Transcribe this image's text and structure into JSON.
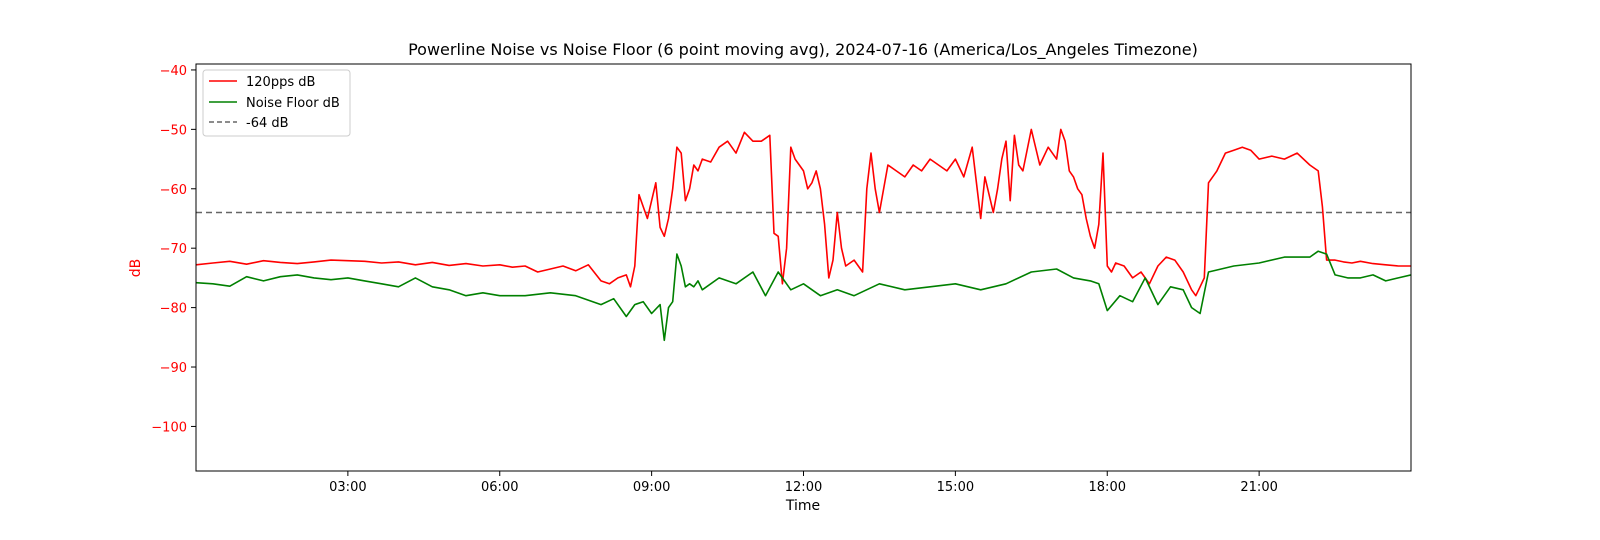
{
  "chart_data": {
    "type": "line",
    "title": "Powerline Noise vs Noise Floor (6 point moving avg), 2024-07-16 (America/Los_Angeles Timezone)",
    "xlabel": "Time",
    "ylabel": "dB",
    "xlim": [
      "00:00",
      "24:00"
    ],
    "ylim": [
      -107.5,
      -39
    ],
    "x_ticks": [
      "03:00",
      "06:00",
      "09:00",
      "12:00",
      "15:00",
      "18:00",
      "21:00"
    ],
    "y_ticks": [
      -40,
      -50,
      -60,
      -70,
      -80,
      -90,
      -100
    ],
    "grid": false,
    "legend_position": "top-left",
    "colors": {
      "axis_y": "#ff0000",
      "series_120pps": "#ff0000",
      "series_noise_floor": "#008000",
      "reference": "#666666"
    },
    "series": [
      {
        "name": "120pps dB",
        "color": "#ff0000",
        "x": [
          "00:00",
          "00:20",
          "00:40",
          "01:00",
          "01:20",
          "01:40",
          "02:00",
          "02:20",
          "02:40",
          "03:00",
          "03:20",
          "03:40",
          "04:00",
          "04:20",
          "04:40",
          "05:00",
          "05:20",
          "05:40",
          "06:00",
          "06:15",
          "06:30",
          "06:45",
          "07:00",
          "07:15",
          "07:30",
          "07:45",
          "08:00",
          "08:10",
          "08:20",
          "08:30",
          "08:35",
          "08:40",
          "08:45",
          "08:50",
          "08:55",
          "09:00",
          "09:05",
          "09:10",
          "09:15",
          "09:20",
          "09:25",
          "09:30",
          "09:35",
          "09:40",
          "09:45",
          "09:50",
          "09:55",
          "10:00",
          "10:10",
          "10:20",
          "10:30",
          "10:40",
          "10:50",
          "11:00",
          "11:10",
          "11:20",
          "11:25",
          "11:30",
          "11:35",
          "11:40",
          "11:45",
          "11:50",
          "11:55",
          "12:00",
          "12:05",
          "12:10",
          "12:15",
          "12:20",
          "12:25",
          "12:30",
          "12:35",
          "12:40",
          "12:45",
          "12:50",
          "13:00",
          "13:10",
          "13:15",
          "13:20",
          "13:25",
          "13:30",
          "13:40",
          "13:50",
          "14:00",
          "14:10",
          "14:20",
          "14:30",
          "14:40",
          "14:50",
          "15:00",
          "15:10",
          "15:20",
          "15:30",
          "15:35",
          "15:40",
          "15:45",
          "15:50",
          "15:55",
          "16:00",
          "16:05",
          "16:10",
          "16:15",
          "16:20",
          "16:30",
          "16:40",
          "16:50",
          "17:00",
          "17:05",
          "17:10",
          "17:15",
          "17:20",
          "17:25",
          "17:30",
          "17:35",
          "17:40",
          "17:45",
          "17:50",
          "17:55",
          "18:00",
          "18:05",
          "18:10",
          "18:20",
          "18:30",
          "18:40",
          "18:50",
          "19:00",
          "19:10",
          "19:20",
          "19:30",
          "19:40",
          "19:45",
          "19:50",
          "19:55",
          "20:00",
          "20:10",
          "20:20",
          "20:30",
          "20:40",
          "20:50",
          "21:00",
          "21:15",
          "21:30",
          "21:45",
          "22:00",
          "22:10",
          "22:15",
          "22:20",
          "22:25",
          "22:30",
          "22:40",
          "22:50",
          "23:00",
          "23:15",
          "23:30",
          "23:45",
          "24:00"
        ],
        "values": [
          -72.8,
          -72.5,
          -72.2,
          -72.7,
          -72.1,
          -72.4,
          -72.6,
          -72.3,
          -72.0,
          -72.1,
          -72.2,
          -72.5,
          -72.3,
          -72.8,
          -72.4,
          -72.9,
          -72.6,
          -73.0,
          -72.8,
          -73.2,
          -73.0,
          -74.0,
          -73.5,
          -73.0,
          -73.8,
          -72.8,
          -75.5,
          -76.0,
          -75.0,
          -74.5,
          -76.5,
          -73.0,
          -61.0,
          -63.0,
          -65.0,
          -62.0,
          -59.0,
          -66.5,
          -68.0,
          -65.0,
          -60.0,
          -53.0,
          -54.0,
          -62.0,
          -60.0,
          -56.0,
          -57.0,
          -55.0,
          -55.5,
          -53.0,
          -52.0,
          -54.0,
          -50.5,
          -52.0,
          -52.0,
          -51.0,
          -67.5,
          -68.0,
          -76.0,
          -70.0,
          -53.0,
          -55.0,
          -56.0,
          -57.0,
          -60.0,
          -59.0,
          -57.0,
          -60.0,
          -66.0,
          -75.0,
          -72.0,
          -64.0,
          -70.0,
          -73.0,
          -72.0,
          -74.0,
          -60.0,
          -54.0,
          -60.0,
          -64.0,
          -56.0,
          -57.0,
          -58.0,
          -56.0,
          -57.0,
          -55.0,
          -56.0,
          -57.0,
          -55.0,
          -58.0,
          -53.0,
          -65.0,
          -58.0,
          -61.0,
          -64.0,
          -60.0,
          -55.0,
          -52.0,
          -62.0,
          -51.0,
          -56.0,
          -57.0,
          -50.0,
          -56.0,
          -53.0,
          -55.0,
          -50.0,
          -52.0,
          -57.0,
          -58.0,
          -60.0,
          -61.0,
          -65.0,
          -68.0,
          -70.0,
          -66.0,
          -54.0,
          -73.0,
          -74.0,
          -72.5,
          -73.0,
          -75.0,
          -74.0,
          -76.0,
          -73.0,
          -71.5,
          -72.0,
          -74.0,
          -77.0,
          -78.0,
          -76.5,
          -75.0,
          -59.0,
          -57.0,
          -54.0,
          -53.5,
          -53.0,
          -53.5,
          -55.0,
          -54.5,
          -55.0,
          -54.0,
          -56.0,
          -57.0,
          -63.0,
          -72.0,
          -72.0,
          -72.0,
          -72.3,
          -72.5,
          -72.2,
          -72.6,
          -72.8,
          -73.0,
          -73.0
        ]
      },
      {
        "name": "Noise Floor dB",
        "color": "#008000",
        "x": [
          "00:00",
          "00:20",
          "00:40",
          "01:00",
          "01:20",
          "01:40",
          "02:00",
          "02:20",
          "02:40",
          "03:00",
          "03:20",
          "03:40",
          "04:00",
          "04:20",
          "04:40",
          "05:00",
          "05:20",
          "05:40",
          "06:00",
          "06:30",
          "07:00",
          "07:30",
          "08:00",
          "08:15",
          "08:30",
          "08:40",
          "08:50",
          "09:00",
          "09:10",
          "09:15",
          "09:20",
          "09:25",
          "09:30",
          "09:35",
          "09:40",
          "09:45",
          "09:50",
          "09:55",
          "10:00",
          "10:20",
          "10:40",
          "11:00",
          "11:15",
          "11:30",
          "11:45",
          "12:00",
          "12:20",
          "12:40",
          "13:00",
          "13:30",
          "14:00",
          "14:30",
          "15:00",
          "15:30",
          "16:00",
          "16:30",
          "17:00",
          "17:20",
          "17:40",
          "17:50",
          "18:00",
          "18:15",
          "18:30",
          "18:45",
          "19:00",
          "19:15",
          "19:30",
          "19:40",
          "19:50",
          "20:00",
          "20:30",
          "21:00",
          "21:30",
          "22:00",
          "22:10",
          "22:20",
          "22:30",
          "22:45",
          "23:00",
          "23:15",
          "23:30",
          "23:45",
          "24:00"
        ],
        "values": [
          -75.8,
          -76.0,
          -76.4,
          -74.8,
          -75.5,
          -74.8,
          -74.5,
          -75.0,
          -75.3,
          -75.0,
          -75.5,
          -76.0,
          -76.5,
          -75.0,
          -76.5,
          -77.0,
          -78.0,
          -77.5,
          -78.0,
          -78.0,
          -77.5,
          -78.0,
          -79.5,
          -78.5,
          -81.5,
          -79.5,
          -79.0,
          -81.0,
          -79.5,
          -85.5,
          -80.0,
          -79.0,
          -71.0,
          -73.0,
          -76.5,
          -76.0,
          -76.5,
          -75.5,
          -77.0,
          -75.0,
          -76.0,
          -74.0,
          -78.0,
          -74.0,
          -77.0,
          -76.0,
          -78.0,
          -77.0,
          -78.0,
          -76.0,
          -77.0,
          -76.5,
          -76.0,
          -77.0,
          -76.0,
          -74.0,
          -73.5,
          -75.0,
          -75.5,
          -76.0,
          -80.5,
          -78.0,
          -79.0,
          -75.0,
          -79.5,
          -76.5,
          -77.0,
          -80.0,
          -81.0,
          -74.0,
          -73.0,
          -72.5,
          -71.5,
          -71.5,
          -70.5,
          -71.0,
          -74.5,
          -75.0,
          -75.0,
          -74.5,
          -75.5,
          -75.0,
          -74.5
        ]
      },
      {
        "name": "-64 dB",
        "color": "#666666",
        "dashed": true,
        "x": [
          "00:00",
          "24:00"
        ],
        "values": [
          -64,
          -64
        ]
      }
    ]
  }
}
